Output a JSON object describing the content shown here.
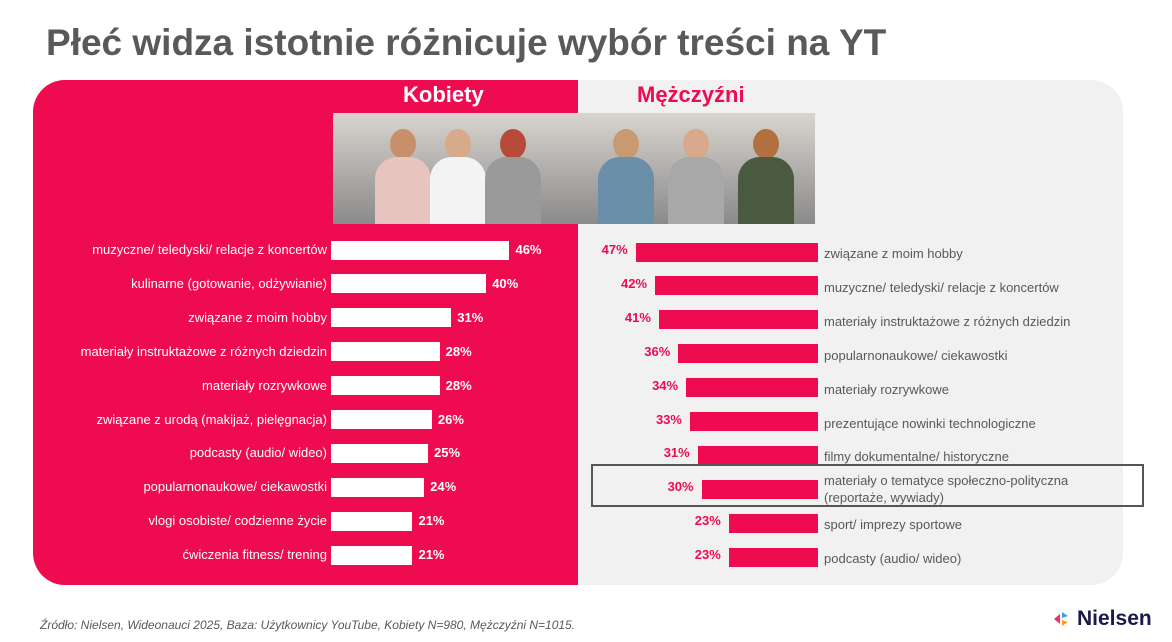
{
  "title": "Płeć widza istotnie różnicuje wybór treści na YT",
  "colors": {
    "accent": "#ee0b50",
    "right_panel": "#f1f1f1",
    "text": "#595959"
  },
  "chart_data": [
    {
      "type": "bar",
      "orientation": "horizontal",
      "title": "Kobiety",
      "categories": [
        "muzyczne/ teledyski/ relacje z koncertów",
        "kulinarne (gotowanie, odżywianie)",
        "związane z moim hobby",
        "materiały instruktażowe z różnych dziedzin",
        "materiały rozrywkowe",
        "związane z urodą (makijaż, pielęgnacja)",
        "podcasty (audio/ wideo)",
        "popularnonaukowe/ ciekawostki",
        "vlogi osobiste/ codzienne życie",
        "ćwiczenia fitness/ trening"
      ],
      "values": [
        46,
        40,
        31,
        28,
        28,
        26,
        25,
        24,
        21,
        21
      ],
      "value_labels": [
        "46%",
        "40%",
        "31%",
        "28%",
        "28%",
        "26%",
        "25%",
        "24%",
        "21%",
        "21%"
      ],
      "unit": "%"
    },
    {
      "type": "bar",
      "orientation": "horizontal",
      "title": "Mężczyźni",
      "categories": [
        "związane z moim hobby",
        "muzyczne/ teledyski/ relacje z koncertów",
        "materiały instruktażowe z różnych dziedzin",
        "popularnonaukowe/ ciekawostki",
        "materiały rozrywkowe",
        "prezentujące nowinki technologiczne",
        "filmy dokumentalne/ historyczne",
        "materiały o tematyce społeczno-polityczna|(reportaże, wywiady)",
        "sport/ imprezy sportowe",
        "podcasty (audio/ wideo)"
      ],
      "values": [
        47,
        42,
        41,
        36,
        34,
        33,
        31,
        30,
        23,
        23
      ],
      "value_labels": [
        "47%",
        "42%",
        "41%",
        "36%",
        "34%",
        "33%",
        "31%",
        "30%",
        "23%",
        "23%"
      ],
      "highlighted_index": 7,
      "unit": "%"
    }
  ],
  "source": "Źródło: Nielsen, Wideonauci 2025, Baza: Użytkownicy YouTube, Kobiety N=980, Mężczyźni N=1015.",
  "logo": "Nielsen"
}
